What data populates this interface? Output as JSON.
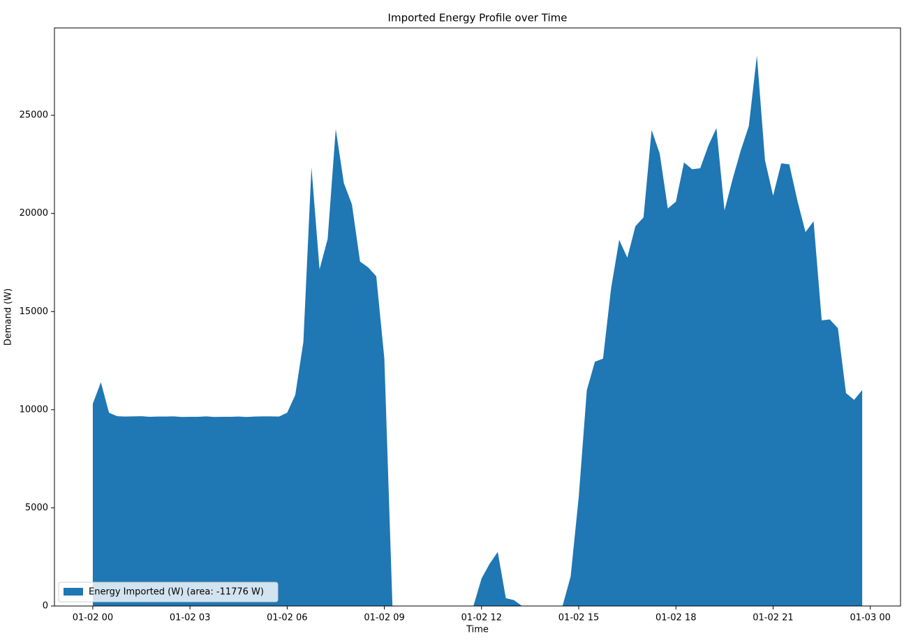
{
  "chart_data": {
    "type": "area",
    "title": "Imported Energy Profile over Time",
    "x_label": "Time",
    "y_label": "Demand (W)",
    "x": [
      "01-02 00:00",
      "01-02 00:15",
      "01-02 00:30",
      "01-02 00:45",
      "01-02 01:00",
      "01-02 01:15",
      "01-02 01:30",
      "01-02 01:45",
      "01-02 02:00",
      "01-02 02:15",
      "01-02 02:30",
      "01-02 02:45",
      "01-02 03:00",
      "01-02 03:15",
      "01-02 03:30",
      "01-02 03:45",
      "01-02 04:00",
      "01-02 04:15",
      "01-02 04:30",
      "01-02 04:45",
      "01-02 05:00",
      "01-02 05:15",
      "01-02 05:30",
      "01-02 05:45",
      "01-02 06:00",
      "01-02 06:15",
      "01-02 06:30",
      "01-02 06:45",
      "01-02 07:00",
      "01-02 07:15",
      "01-02 07:30",
      "01-02 07:45",
      "01-02 08:00",
      "01-02 08:15",
      "01-02 08:30",
      "01-02 08:45",
      "01-02 09:00",
      "01-02 09:15",
      "01-02 09:30",
      "01-02 09:45",
      "01-02 10:00",
      "01-02 10:15",
      "01-02 10:30",
      "01-02 10:45",
      "01-02 11:00",
      "01-02 11:15",
      "01-02 11:30",
      "01-02 11:45",
      "01-02 12:00",
      "01-02 12:15",
      "01-02 12:30",
      "01-02 12:45",
      "01-02 13:00",
      "01-02 13:15",
      "01-02 13:30",
      "01-02 13:45",
      "01-02 14:00",
      "01-02 14:15",
      "01-02 14:30",
      "01-02 14:45",
      "01-02 15:00",
      "01-02 15:15",
      "01-02 15:30",
      "01-02 15:45",
      "01-02 16:00",
      "01-02 16:15",
      "01-02 16:30",
      "01-02 16:45",
      "01-02 17:00",
      "01-02 17:15",
      "01-02 17:30",
      "01-02 17:45",
      "01-02 18:00",
      "01-02 18:15",
      "01-02 18:30",
      "01-02 18:45",
      "01-02 19:00",
      "01-02 19:15",
      "01-02 19:30",
      "01-02 19:45",
      "01-02 20:00",
      "01-02 20:15",
      "01-02 20:30",
      "01-02 20:45",
      "01-02 21:00",
      "01-02 21:15",
      "01-02 21:30",
      "01-02 21:45",
      "01-02 22:00",
      "01-02 22:15",
      "01-02 22:30",
      "01-02 22:45",
      "01-02 23:00",
      "01-02 23:15",
      "01-02 23:30",
      "01-02 23:45"
    ],
    "series": [
      {
        "name": "Energy Imported (W) (area: -11776 W)",
        "color": "#1f77b4",
        "values": [
          10300,
          11400,
          9850,
          9670,
          9650,
          9660,
          9670,
          9640,
          9650,
          9650,
          9660,
          9630,
          9640,
          9640,
          9660,
          9630,
          9640,
          9640,
          9650,
          9630,
          9650,
          9660,
          9660,
          9650,
          9850,
          10750,
          13450,
          22350,
          17150,
          18700,
          24300,
          21550,
          20450,
          17550,
          17250,
          16800,
          12600,
          0,
          0,
          0,
          0,
          0,
          0,
          0,
          0,
          0,
          0,
          0,
          1400,
          2150,
          2750,
          400,
          300,
          0,
          0,
          0,
          0,
          0,
          0,
          1500,
          5550,
          11000,
          12450,
          12600,
          16200,
          18650,
          17750,
          19350,
          19800,
          24250,
          23050,
          20250,
          20600,
          22600,
          22250,
          22300,
          23450,
          24350,
          20150,
          21750,
          23200,
          24450,
          28050,
          22700,
          20900,
          22550,
          22500,
          20650,
          19050,
          19600,
          14550,
          14600,
          14150,
          10850,
          10500,
          11000
        ]
      }
    ],
    "xlim": [
      "01-01 22:49",
      "01-03 00:56"
    ],
    "xticks": [
      {
        "value": "01-02 00:00",
        "label": "01-02 00"
      },
      {
        "value": "01-02 03:00",
        "label": "01-02 03"
      },
      {
        "value": "01-02 06:00",
        "label": "01-02 06"
      },
      {
        "value": "01-02 09:00",
        "label": "01-02 09"
      },
      {
        "value": "01-02 12:00",
        "label": "01-02 12"
      },
      {
        "value": "01-02 15:00",
        "label": "01-02 15"
      },
      {
        "value": "01-02 18:00",
        "label": "01-02 18"
      },
      {
        "value": "01-02 21:00",
        "label": "01-02 21"
      },
      {
        "value": "01-03 00:00",
        "label": "01-03 00"
      }
    ],
    "ylim": [
      0,
      29450
    ],
    "yticks": [
      0,
      5000,
      10000,
      15000,
      20000,
      25000
    ],
    "legend": "lower left"
  }
}
